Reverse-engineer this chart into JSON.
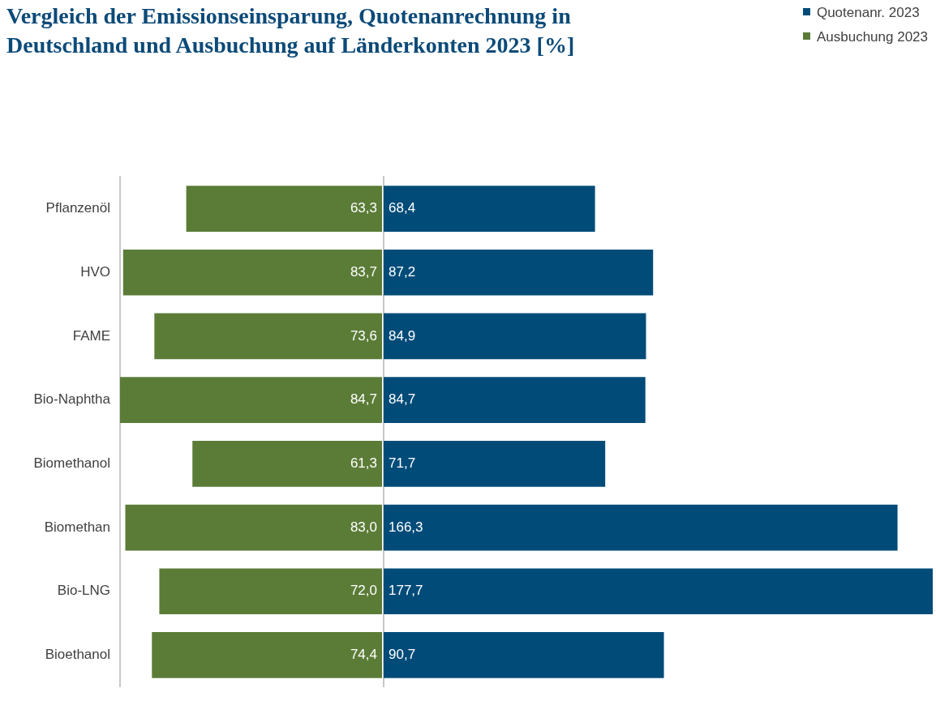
{
  "chart_data": [
    {
      "type": "bar",
      "orientation": "horizontal",
      "title": "Vergleich der Emissionseinsparung, Quotenanrechnung in Deutschland und Ausbuchung auf Länderkonten 2023 [%]",
      "categories": [
        "Pflanzenöl",
        "HVO",
        "FAME",
        "Bio-Naphtha",
        "Biomethanol",
        "Biomethan",
        "Bio-LNG",
        "Bioethanol"
      ],
      "series": [
        {
          "name": "Ausbuchung 2023",
          "color": "#5b7c37",
          "values": [
            63.3,
            83.7,
            73.6,
            84.7,
            61.3,
            83.0,
            72.0,
            74.4
          ],
          "value_labels": [
            "63,3",
            "83,7",
            "73,6",
            "84,7",
            "61,3",
            "83,0",
            "72,0",
            "74,4"
          ]
        }
      ],
      "tick_labels": "y"
    },
    {
      "type": "bar",
      "orientation": "horizontal",
      "categories": [
        null,
        null,
        null,
        null,
        null,
        null,
        null,
        null
      ],
      "series": [
        {
          "name": "Quotenanr. 2023",
          "color": "#004b78",
          "values": [
            68.4,
            87.2,
            84.9,
            84.7,
            71.7,
            166.3,
            177.7,
            90.7
          ],
          "value_labels": [
            "68,4",
            "87,2",
            "84,9",
            "84,7",
            "71,7",
            "166,3",
            "177,7",
            "90,7"
          ]
        }
      ],
      "tick_labels": false,
      "legend": "top right"
    }
  ]
}
